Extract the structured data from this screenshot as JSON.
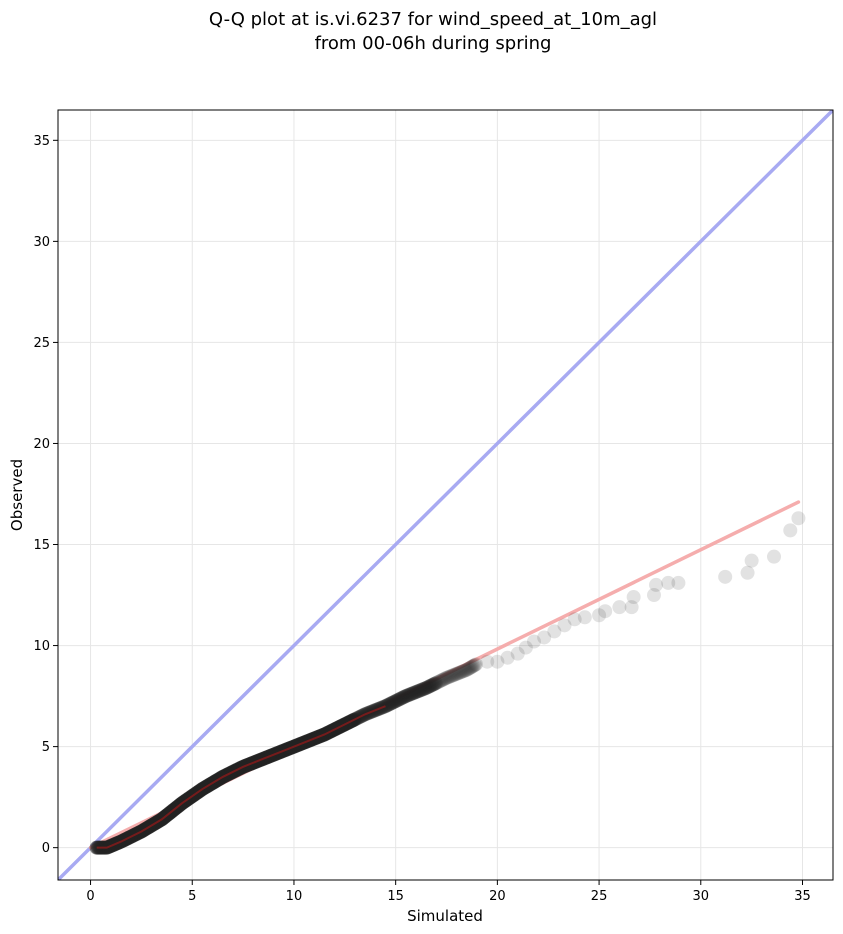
{
  "chart_data": {
    "type": "scatter",
    "title": [
      "Q-Q plot at is.vi.6237 for wind_speed_at_10m_agl",
      "from 00-06h during spring"
    ],
    "xlabel": "Simulated",
    "ylabel": "Observed",
    "xlim": [
      -1.6,
      36.5
    ],
    "ylim": [
      -1.6,
      36.5
    ],
    "xticks": [
      0,
      5,
      10,
      15,
      20,
      25,
      30,
      35
    ],
    "yticks": [
      0,
      5,
      10,
      15,
      20,
      25,
      30,
      35
    ],
    "grid": true,
    "colors": {
      "points": "#222222",
      "identity_line": "#a8aaf2",
      "fit_line": "#f5a9a9",
      "fit_core": "#8b1a1a"
    },
    "identity_line": {
      "from": [
        -1.6,
        -1.6
      ],
      "to": [
        36.5,
        36.5
      ]
    },
    "fit_line": {
      "from": [
        0,
        0
      ],
      "to": [
        34.8,
        17.1
      ]
    },
    "dense_curve": [
      [
        0.3,
        0.0
      ],
      [
        0.8,
        0.0
      ],
      [
        1.5,
        0.3
      ],
      [
        2.5,
        0.8
      ],
      [
        3.5,
        1.4
      ],
      [
        4.5,
        2.2
      ],
      [
        5.5,
        2.9
      ],
      [
        6.5,
        3.5
      ],
      [
        7.5,
        4.0
      ],
      [
        8.5,
        4.4
      ],
      [
        9.5,
        4.8
      ],
      [
        10.5,
        5.2
      ],
      [
        11.5,
        5.6
      ],
      [
        12.5,
        6.1
      ],
      [
        13.5,
        6.6
      ],
      [
        14.5,
        7.0
      ],
      [
        15.5,
        7.5
      ],
      [
        16.5,
        7.9
      ],
      [
        17.5,
        8.4
      ],
      [
        18.5,
        8.8
      ],
      [
        19.0,
        9.1
      ]
    ],
    "points": [
      [
        19.5,
        9.2
      ],
      [
        20.0,
        9.2
      ],
      [
        20.5,
        9.4
      ],
      [
        21.0,
        9.6
      ],
      [
        21.4,
        9.9
      ],
      [
        21.8,
        10.2
      ],
      [
        22.3,
        10.4
      ],
      [
        22.8,
        10.7
      ],
      [
        23.3,
        11.0
      ],
      [
        23.8,
        11.3
      ],
      [
        24.3,
        11.4
      ],
      [
        25.0,
        11.5
      ],
      [
        25.3,
        11.7
      ],
      [
        26.0,
        11.9
      ],
      [
        26.6,
        11.9
      ],
      [
        26.7,
        12.4
      ],
      [
        27.7,
        12.5
      ],
      [
        27.8,
        13.0
      ],
      [
        28.4,
        13.1
      ],
      [
        28.9,
        13.1
      ],
      [
        31.2,
        13.4
      ],
      [
        32.3,
        13.6
      ],
      [
        32.5,
        14.2
      ],
      [
        33.6,
        14.4
      ],
      [
        34.4,
        15.7
      ],
      [
        34.8,
        16.3
      ]
    ]
  }
}
